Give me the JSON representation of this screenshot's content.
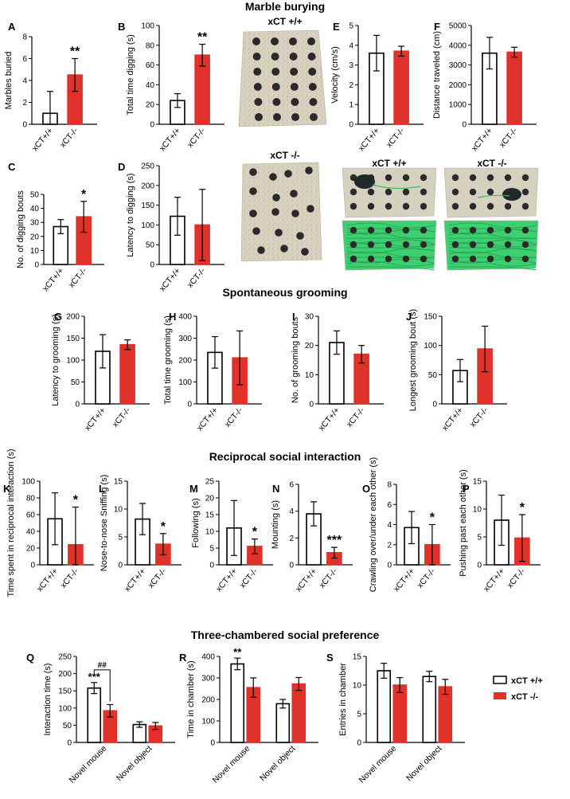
{
  "sections": {
    "marble_burying": "Marble burying",
    "grooming": "Spontaneous grooming",
    "social": "Reciprocal social interaction",
    "three_chamber": "Three-chambered social preference"
  },
  "photos": {
    "top_label": "xCT +/+",
    "bottom_label": "xCT -/-",
    "pair_left_label": "xCT +/+",
    "pair_right_label": "xCT -/-"
  },
  "legend": {
    "wt": "xCT +/+",
    "ko": "xCT -/-",
    "wt_color": "#ffffff",
    "ko_color": "#e0312b"
  },
  "chart_data": [
    {
      "panel": "A",
      "type": "bar",
      "ylabel": "Marbles buried",
      "categories": [
        "xCT+/+",
        "xCT-/-"
      ],
      "values": [
        1,
        4.5
      ],
      "errors": [
        2,
        1.5
      ],
      "ylim": [
        0,
        8
      ],
      "ticks": [
        0,
        2,
        4,
        6,
        8
      ],
      "annotation": "**"
    },
    {
      "panel": "B",
      "type": "bar",
      "ylabel": "Total time digging (s)",
      "categories": [
        "xCT+/+",
        "xCT-/-"
      ],
      "values": [
        24,
        70
      ],
      "errors": [
        7,
        11
      ],
      "ylim": [
        0,
        100
      ],
      "ticks": [
        0,
        20,
        40,
        60,
        80,
        100
      ],
      "annotation": "**"
    },
    {
      "panel": "E",
      "type": "bar",
      "ylabel": "Velocity (cm/s)",
      "categories": [
        "xCT+/+",
        "xCT-/-"
      ],
      "values": [
        3.6,
        3.7
      ],
      "errors": [
        0.9,
        0.25
      ],
      "ylim": [
        0,
        5
      ],
      "ticks": [
        0,
        1,
        2,
        3,
        4,
        5
      ],
      "annotation": ""
    },
    {
      "panel": "F",
      "type": "bar",
      "ylabel": "Distance traveled (cm)",
      "categories": [
        "xCT+/+",
        "xCT-/-"
      ],
      "values": [
        3600,
        3650
      ],
      "errors": [
        800,
        250
      ],
      "ylim": [
        0,
        5000
      ],
      "ticks": [
        0,
        1000,
        2000,
        3000,
        4000,
        5000
      ],
      "annotation": ""
    },
    {
      "panel": "C",
      "type": "bar",
      "ylabel": "No. of digging bouts",
      "categories": [
        "xCT+/+",
        "xCT-/-"
      ],
      "values": [
        27,
        34
      ],
      "errors": [
        5,
        11
      ],
      "ylim": [
        0,
        50
      ],
      "ticks": [
        0,
        10,
        20,
        30,
        40,
        50
      ],
      "annotation": "*"
    },
    {
      "panel": "D",
      "type": "bar",
      "ylabel": "Latency to digging (s)",
      "categories": [
        "xCT+/+",
        "xCT-/-"
      ],
      "values": [
        122,
        100
      ],
      "errors": [
        48,
        90
      ],
      "ylim": [
        0,
        250
      ],
      "ticks": [
        0,
        50,
        100,
        150,
        200,
        250
      ],
      "annotation": ""
    },
    {
      "panel": "G",
      "type": "bar",
      "ylabel": "Latency to grooming (s)",
      "categories": [
        "xCT+/+",
        "xCT-/-"
      ],
      "values": [
        120,
        135
      ],
      "errors": [
        38,
        11
      ],
      "ylim": [
        0,
        200
      ],
      "ticks": [
        0,
        50,
        100,
        150,
        200
      ],
      "annotation": ""
    },
    {
      "panel": "H",
      "type": "bar",
      "ylabel": "Total time grooming (s)",
      "categories": [
        "xCT+/+",
        "xCT-/-"
      ],
      "values": [
        235,
        210
      ],
      "errors": [
        72,
        123
      ],
      "ylim": [
        0,
        400
      ],
      "ticks": [
        0,
        100,
        200,
        300,
        400
      ],
      "annotation": ""
    },
    {
      "panel": "I",
      "type": "bar",
      "ylabel": "No. of grooming bouts",
      "categories": [
        "xCT+/+",
        "xCT-/-"
      ],
      "values": [
        21,
        17
      ],
      "errors": [
        4,
        3
      ],
      "ylim": [
        0,
        30
      ],
      "ticks": [
        0,
        10,
        20,
        30
      ],
      "annotation": ""
    },
    {
      "panel": "J",
      "type": "bar",
      "ylabel": "Longest grooming bout (s)",
      "categories": [
        "xCT+/+",
        "xCT-/-"
      ],
      "values": [
        57,
        94
      ],
      "errors": [
        19,
        39
      ],
      "ylim": [
        0,
        150
      ],
      "ticks": [
        0,
        50,
        100,
        150
      ],
      "annotation": ""
    },
    {
      "panel": "K",
      "type": "bar",
      "ylabel": "Time spent in reciprocal interaction (s)",
      "categories": [
        "xCT+/+",
        "xCT-/-"
      ],
      "values": [
        55,
        24
      ],
      "errors": [
        31,
        45
      ],
      "ylim": [
        0,
        100
      ],
      "ticks": [
        0,
        20,
        40,
        60,
        80,
        100
      ],
      "annotation": "*"
    },
    {
      "panel": "L",
      "type": "bar",
      "ylabel": "Nose-to-nose Sniffing (s)",
      "categories": [
        "xCT+/+",
        "xCT-/-"
      ],
      "values": [
        8.2,
        3.7
      ],
      "errors": [
        2.8,
        1.9
      ],
      "ylim": [
        0,
        15
      ],
      "ticks": [
        0,
        5,
        10,
        15
      ],
      "annotation": "*"
    },
    {
      "panel": "M",
      "type": "bar",
      "ylabel": "Following (s)",
      "categories": [
        "xCT+/+",
        "xCT-/-"
      ],
      "values": [
        11,
        5.5
      ],
      "errors": [
        8.2,
        2.2
      ],
      "ylim": [
        0,
        25
      ],
      "ticks": [
        0,
        5,
        10,
        15,
        20,
        25
      ],
      "annotation": "*"
    },
    {
      "panel": "N",
      "type": "bar",
      "ylabel": "Mounting (s)",
      "categories": [
        "xCT+/+",
        "xCT-/-"
      ],
      "values": [
        3.8,
        0.9
      ],
      "errors": [
        0.9,
        0.4
      ],
      "ylim": [
        0,
        6
      ],
      "ticks": [
        0,
        2,
        4,
        6
      ],
      "annotation": "***"
    },
    {
      "panel": "O",
      "type": "bar",
      "ylabel": "Crawling over/under each other (s)",
      "categories": [
        "xCT+/+",
        "xCT-/-"
      ],
      "values": [
        3.7,
        2
      ],
      "errors": [
        1.6,
        2
      ],
      "ylim": [
        0,
        8
      ],
      "ticks": [
        0,
        2,
        4,
        6,
        8
      ],
      "annotation": "*"
    },
    {
      "panel": "P",
      "type": "bar",
      "ylabel": "Pushing past each other (s)",
      "categories": [
        "xCT+/+",
        "xCT-/-"
      ],
      "values": [
        8,
        4.8
      ],
      "errors": [
        4.5,
        4.2
      ],
      "ylim": [
        0,
        15
      ],
      "ticks": [
        0,
        5,
        10,
        15
      ],
      "annotation": "*"
    },
    {
      "panel": "Q",
      "type": "grouped_bar",
      "ylabel": "Interaction time (s)",
      "categories": [
        "Novel mouse",
        "Novel object"
      ],
      "series": [
        {
          "name": "xCT +/+",
          "values": [
            158,
            52
          ],
          "errors": [
            16,
            8
          ]
        },
        {
          "name": "xCT -/-",
          "values": [
            92,
            48
          ],
          "errors": [
            18,
            10
          ]
        }
      ],
      "ylim": [
        0,
        250
      ],
      "ticks": [
        0,
        50,
        100,
        150,
        200,
        250
      ],
      "annotations": [
        "***",
        "##"
      ]
    },
    {
      "panel": "R",
      "type": "grouped_bar",
      "ylabel": "Time in chamber (s)",
      "categories": [
        "Novel mouse",
        "Novel object"
      ],
      "series": [
        {
          "name": "xCT +/+",
          "values": [
            365,
            180
          ],
          "errors": [
            27,
            20
          ]
        },
        {
          "name": "xCT -/-",
          "values": [
            255,
            272
          ],
          "errors": [
            45,
            30
          ]
        }
      ],
      "ylim": [
        0,
        400
      ],
      "ticks": [
        0,
        100,
        200,
        300,
        400
      ],
      "annotations": [
        "**"
      ]
    },
    {
      "panel": "S",
      "type": "grouped_bar",
      "ylabel": "Entries in chamber",
      "categories": [
        "Novel mouse",
        "Novel object"
      ],
      "series": [
        {
          "name": "xCT +/+",
          "values": [
            12.5,
            11.5
          ],
          "errors": [
            1.3,
            0.9
          ]
        },
        {
          "name": "xCT -/-",
          "values": [
            10,
            9.7
          ],
          "errors": [
            1.3,
            1.3
          ]
        }
      ],
      "ylim": [
        0,
        15
      ],
      "ticks": [
        0,
        5,
        10,
        15
      ],
      "annotations": []
    }
  ]
}
